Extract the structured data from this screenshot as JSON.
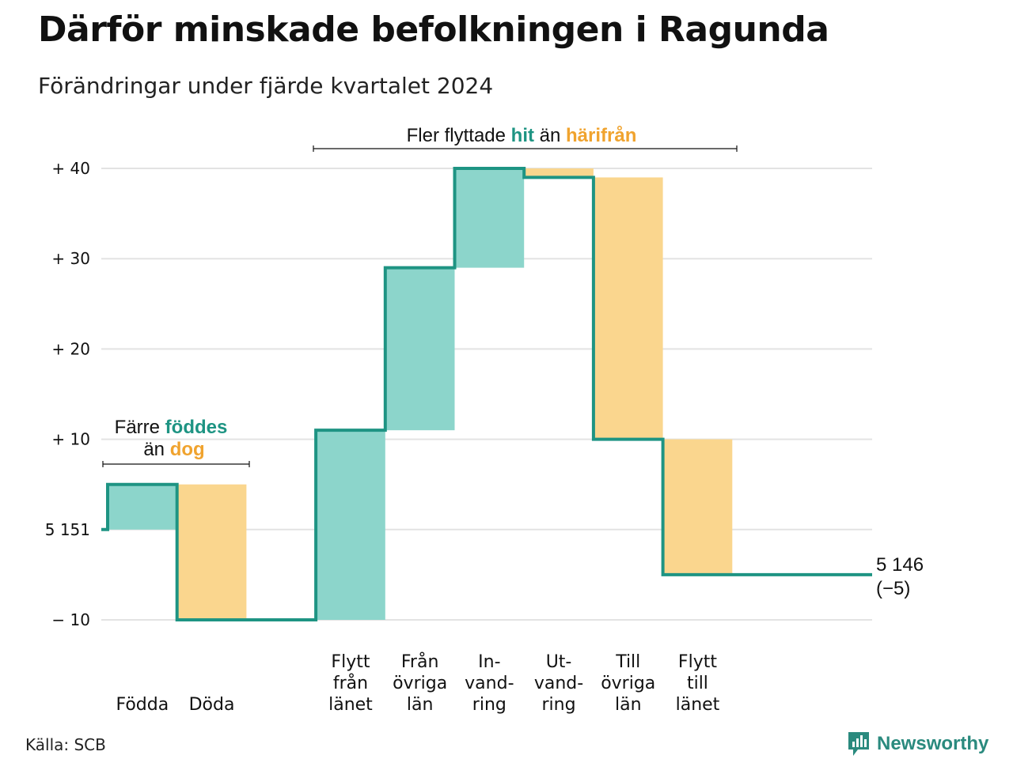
{
  "title": "Därför minskade befolkningen i Ragunda",
  "subtitle": "Förändringar under fjärde kvartalet 2024",
  "source": "Källa: SCB",
  "brand": {
    "name": "Newsworthy",
    "icon": "newsworthy-logo-icon"
  },
  "colors": {
    "positive_fill": "#8cd5cb",
    "negative_fill": "#fad68e",
    "line": "#1e9483",
    "positive_text": "#1e9483",
    "negative_text": "#f0a32e",
    "grid": "#e3e3e3"
  },
  "annotations": {
    "births": {
      "line1_pre": "Färre ",
      "line1_hl": "föddes",
      "line2_pre": "än ",
      "line2_hl": "dog"
    },
    "moves": {
      "pre": "Fler flyttade ",
      "hl1": "hit",
      "mid": " än ",
      "hl2": "härifrån"
    }
  },
  "chart_data": {
    "type": "waterfall",
    "title": "Därför minskade befolkningen i Ragunda",
    "subtitle": "Förändringar under fjärde kvartalet 2024",
    "baseline_label": "5 151",
    "start_value": 5151,
    "end_value": 5146,
    "end_label": "5 146",
    "end_change_label": "(−5)",
    "ylim": [
      -10,
      40
    ],
    "yticks": [
      {
        "value": 40,
        "label": "+ 40"
      },
      {
        "value": 30,
        "label": "+ 30"
      },
      {
        "value": 20,
        "label": "+ 20"
      },
      {
        "value": 10,
        "label": "+ 10"
      },
      {
        "value": 0,
        "label": "5 151"
      },
      {
        "value": -10,
        "label": "− 10"
      }
    ],
    "grid": true,
    "steps": [
      {
        "group": "births",
        "label": [
          "",
          "",
          "Födda"
        ],
        "change": 5,
        "cumulative": 5
      },
      {
        "group": "births",
        "label": [
          "",
          "",
          "Döda"
        ],
        "change": -15,
        "cumulative": -10
      },
      {
        "group": "gap",
        "label": [],
        "change": 0,
        "cumulative": -10
      },
      {
        "group": "moves",
        "label": [
          "Flytt",
          "från",
          "länet"
        ],
        "change": 21,
        "cumulative": 11
      },
      {
        "group": "moves",
        "label": [
          "Från",
          "övriga",
          "län"
        ],
        "change": 18,
        "cumulative": 29
      },
      {
        "group": "moves",
        "label": [
          "In-",
          "vand-",
          "ring"
        ],
        "change": 11,
        "cumulative": 40
      },
      {
        "group": "moves",
        "label": [
          "Ut-",
          "vand-",
          "ring"
        ],
        "change": -1,
        "cumulative": 39
      },
      {
        "group": "moves",
        "label": [
          "Till",
          "övriga",
          "län"
        ],
        "change": -29,
        "cumulative": 10
      },
      {
        "group": "moves",
        "label": [
          "Flytt",
          "till",
          "länet"
        ],
        "change": -15,
        "cumulative": -5
      },
      {
        "group": "end",
        "label": [],
        "change": 0,
        "cumulative": -5
      }
    ]
  }
}
